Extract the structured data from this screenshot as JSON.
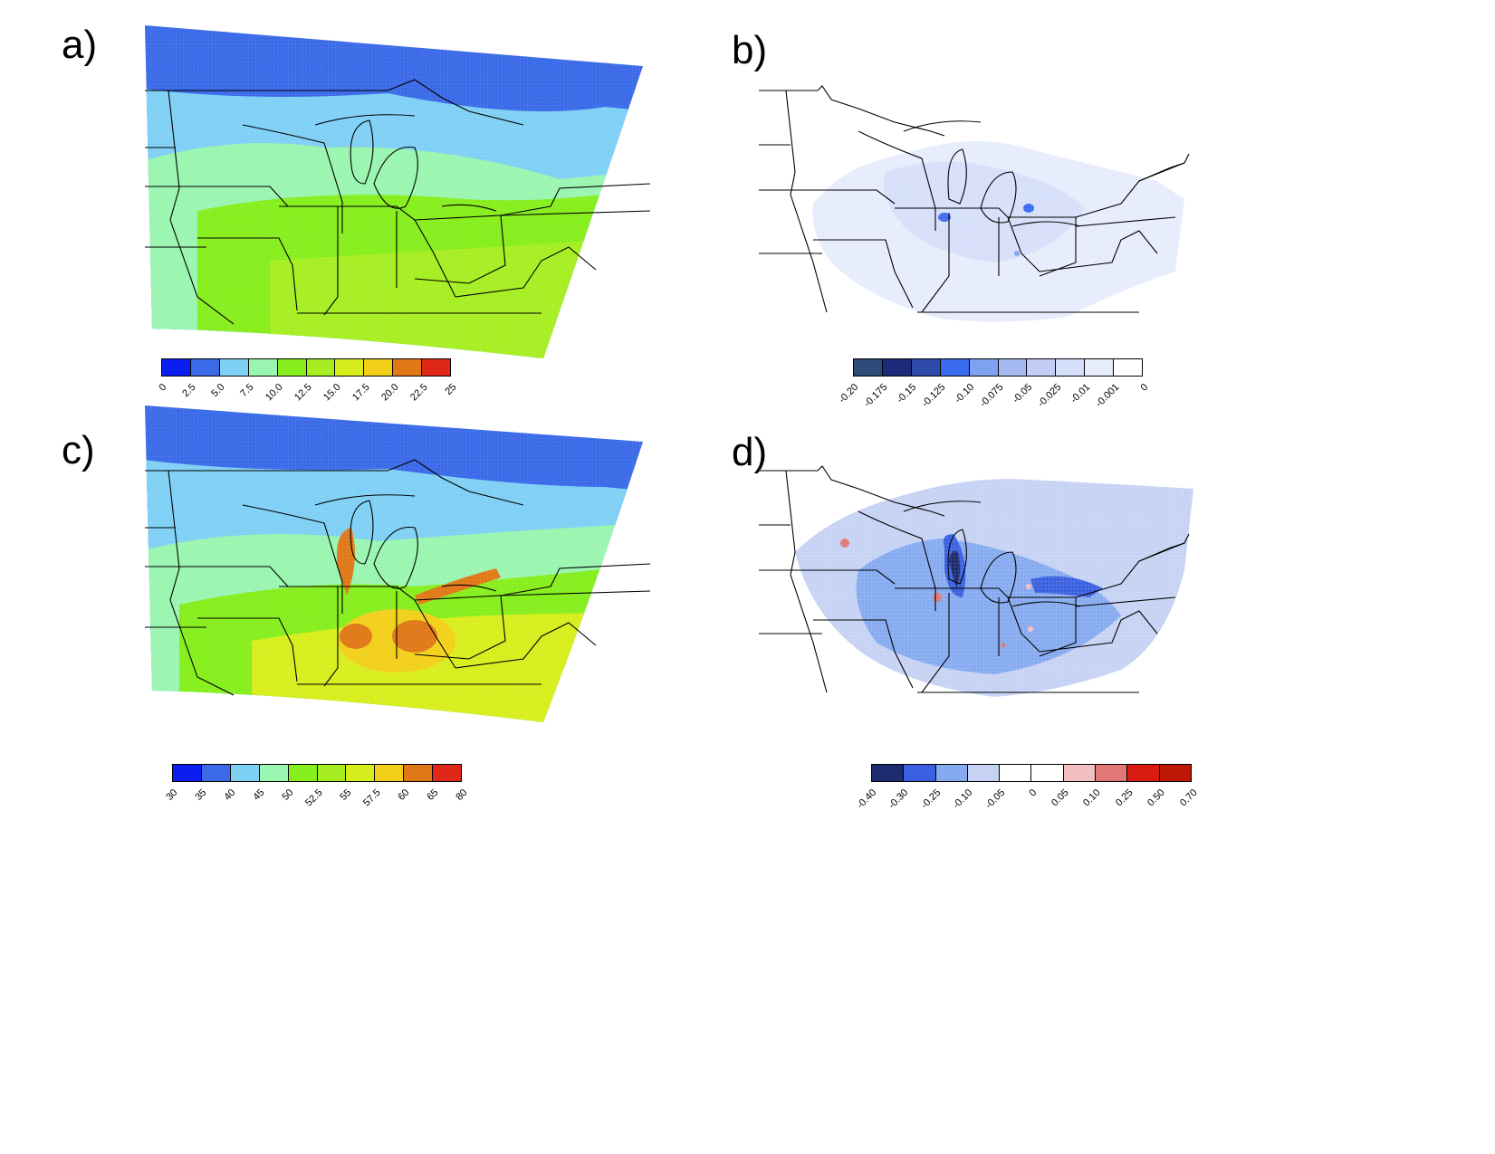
{
  "panels": [
    {
      "label": "a)",
      "colorbar": {
        "colors": [
          "#0a1ef0",
          "#3a6ae8",
          "#7fd0f5",
          "#9af5b0",
          "#86ee1c",
          "#a6ee22",
          "#d8ee1c",
          "#f2d01a",
          "#e07818",
          "#e02818"
        ],
        "ticks": [
          "0",
          "2.5",
          "5.0",
          "7.5",
          "10.0",
          "12.5",
          "15.0",
          "17.5",
          "20.0",
          "22.5",
          "25"
        ]
      }
    },
    {
      "label": "b)",
      "colorbar": {
        "colors": [
          "#2e4a78",
          "#1c2c7a",
          "#2e4aa8",
          "#3a6aee",
          "#7ea2f0",
          "#a6baf2",
          "#c2cef6",
          "#d6dffa",
          "#e6ecfc",
          "#ffffff"
        ],
        "ticks": [
          "-0.20",
          "-0.175",
          "-0.15",
          "-0.125",
          "-0.10",
          "-0.075",
          "-0.05",
          "-0.025",
          "-0.01",
          "-0.001",
          "0"
        ]
      }
    },
    {
      "label": "c)",
      "colorbar": {
        "colors": [
          "#0a1ef0",
          "#3a6ae8",
          "#7fd0f5",
          "#9af5b0",
          "#86ee1c",
          "#a6ee22",
          "#d8ee1c",
          "#f2d01a",
          "#e07818",
          "#e02818"
        ],
        "ticks": [
          "30",
          "35",
          "40",
          "45",
          "50",
          "52.5",
          "55",
          "57.5",
          "60",
          "65",
          "80"
        ]
      }
    },
    {
      "label": "d)",
      "colorbar": {
        "colors": [
          "#1c2c6e",
          "#3a60e0",
          "#86aaf0",
          "#c6d2f4",
          "#ffffff",
          "#ffffff",
          "#f2c0c0",
          "#e07878",
          "#d81c10",
          "#c01808"
        ],
        "ticks": [
          "-0.40",
          "-0.30",
          "-0.25",
          "-0.10",
          "-0.05",
          "0",
          "0.05",
          "0.10",
          "0.25",
          "0.50",
          "0.70"
        ]
      }
    }
  ]
}
